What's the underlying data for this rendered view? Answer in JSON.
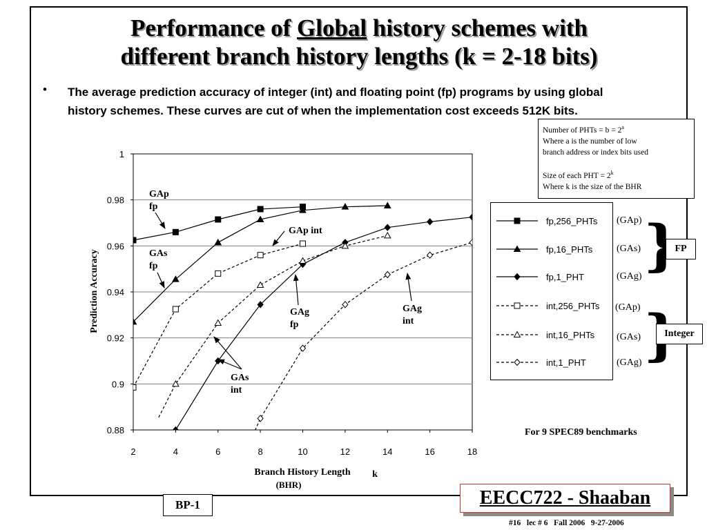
{
  "slide": {
    "title_part1": "Performance of ",
    "title_underlined": "Global",
    "title_part2": " history schemes with",
    "title_line2": "different branch history lengths (k = 2-18 bits)",
    "bullet": "•",
    "bullet_text": "The average prediction accuracy of integer (int) and floating point (fp) programs by using global history schemes. These curves are cut of when the implementation cost exceeds 512K bits.",
    "note": {
      "line1_prefix": "Number of PHTs = b = 2",
      "line1_sup": "a",
      "line2": "Where a is the number of low",
      "line3": "branch address or index bits used",
      "line4_prefix": "Size of each PHT = 2",
      "line4_sup": "k",
      "line5": "Where k is the size of the BHR"
    },
    "benchmark_note": "For 9 SPEC89 benchmarks",
    "course": "EECC722 - Shaaban",
    "slide_id": "BP-1",
    "footer": "#16   lec # 6   Fall 2006   9-27-2006",
    "groups": {
      "fp": "FP",
      "integer": "Integer"
    },
    "legend_abbr": [
      "(GAp)",
      "(GAs)",
      "(GAg)",
      "(GAp)",
      "(GAs)",
      "(GAg)"
    ],
    "annotations": {
      "gap_fp": [
        "GAp",
        "fp"
      ],
      "gas_fp": [
        "GAs",
        "fp"
      ],
      "gap_int": [
        "GAp int"
      ],
      "gag_fp": [
        "GAg",
        "fp"
      ],
      "gag_int": [
        "GAg",
        "int"
      ],
      "gas_int": [
        "GAs",
        "int"
      ]
    }
  },
  "chart_data": {
    "type": "line",
    "xlabel": "Branch History Length",
    "xlabel_sub": "(BHR)",
    "xlabel_k": "k",
    "ylabel": "Prediction Accuracy",
    "xlim": [
      2,
      18
    ],
    "ylim": [
      0.88,
      1
    ],
    "x_ticks": [
      "2",
      "4",
      "6",
      "8",
      "10",
      "12",
      "14",
      "16",
      "18"
    ],
    "y_ticks": [
      "0.88",
      "0.9",
      "0.92",
      "0.94",
      "0.96",
      "0.98",
      "1"
    ],
    "grid": true,
    "series": [
      {
        "name": "fp,256_PHTs",
        "line": "solid",
        "marker": "square-filled",
        "x": [
          2,
          4,
          6,
          8,
          10
        ],
        "y": [
          0.9625,
          0.966,
          0.9715,
          0.976,
          0.977
        ]
      },
      {
        "name": "fp,16_PHTs",
        "line": "solid",
        "marker": "triangle-filled",
        "x": [
          2,
          4,
          6,
          8,
          10,
          12,
          14
        ],
        "y": [
          0.927,
          0.9455,
          0.9615,
          0.9715,
          0.9755,
          0.977,
          0.9775
        ]
      },
      {
        "name": "fp,1_PHT",
        "line": "solid",
        "marker": "diamond-filled",
        "x": [
          4,
          6,
          8,
          10,
          12,
          14,
          16,
          18
        ],
        "y": [
          0.88,
          0.91,
          0.9345,
          0.952,
          0.9615,
          0.968,
          0.9705,
          0.9725
        ]
      },
      {
        "name": "int,256_PHTs",
        "line": "dashed",
        "marker": "square-open",
        "x": [
          2,
          4,
          6,
          8,
          10
        ],
        "y": [
          0.8985,
          0.9325,
          0.948,
          0.956,
          0.961
        ]
      },
      {
        "name": "int,16_PHTs",
        "line": "dashed",
        "marker": "triangle-open",
        "x": [
          4,
          6,
          8,
          10,
          12,
          14
        ],
        "y": [
          0.9,
          0.9265,
          0.943,
          0.9535,
          0.96,
          0.9645
        ]
      },
      {
        "name": "int,1_PHT",
        "line": "dashed",
        "marker": "diamond-open",
        "x": [
          8,
          10,
          12,
          14,
          16,
          18
        ],
        "y": [
          0.885,
          0.9155,
          0.9345,
          0.9475,
          0.956,
          0.9615
        ]
      }
    ]
  }
}
